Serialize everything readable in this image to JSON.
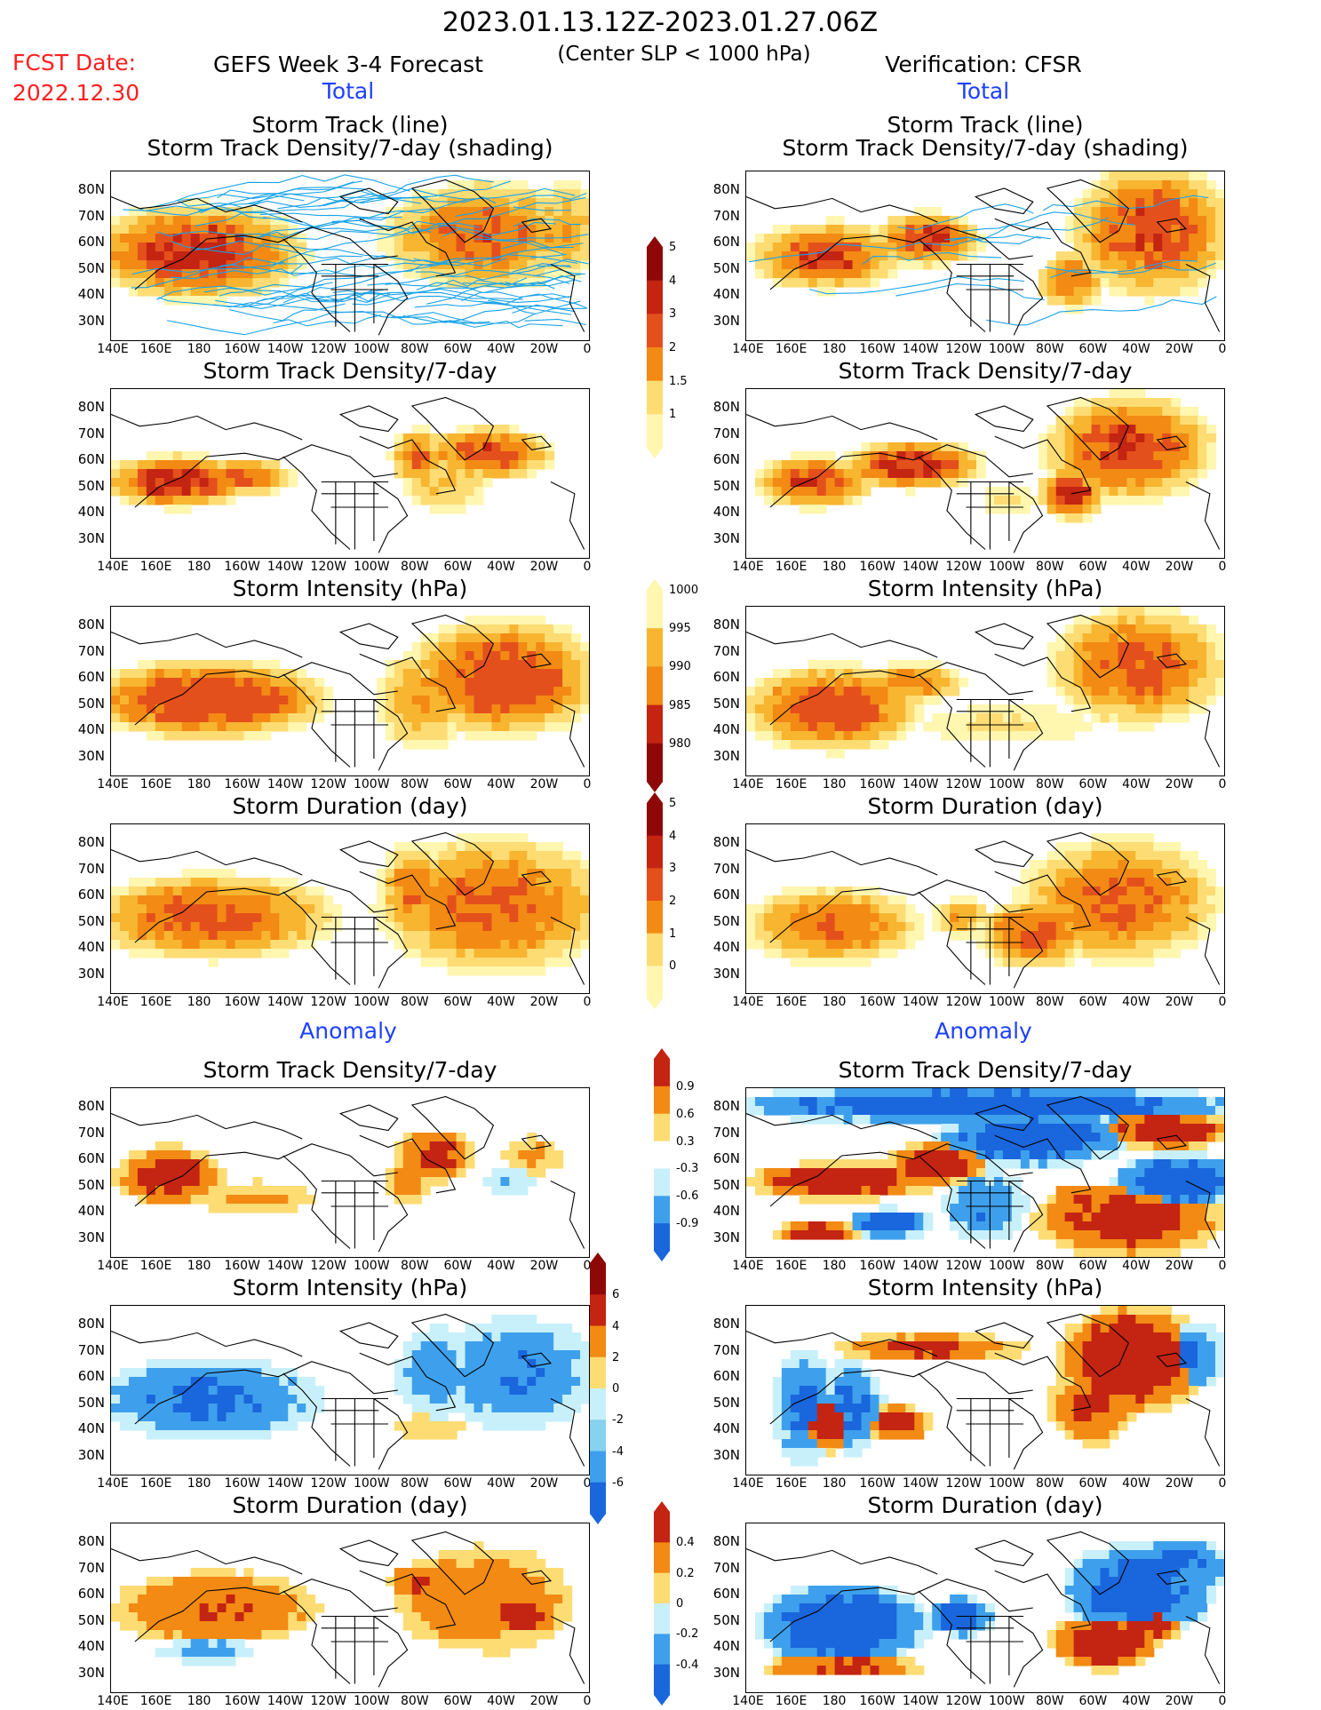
{
  "header": {
    "date_range": "2023.01.13.12Z-2023.01.27.06Z",
    "fcst_label": "FCST Date:",
    "fcst_date": "2022.12.30",
    "left_title": "GEFS Week 3-4 Forecast",
    "center_note": "(Center SLP < 1000 hPa)",
    "right_title": "Verification: CFSR"
  },
  "sections": {
    "total": "Total",
    "anomaly": "Anomaly"
  },
  "panel_titles": {
    "track_line": "Storm Track (line)",
    "track_shading": "Storm Track Density/7-day (shading)",
    "density": "Storm Track Density/7-day",
    "intensity": "Storm Intensity (hPa)",
    "duration": "Storm Duration (day)"
  },
  "axes": {
    "lat_labels": [
      "80N",
      "70N",
      "60N",
      "50N",
      "40N",
      "30N"
    ],
    "lon_labels": [
      "140E",
      "160E",
      "180",
      "160W",
      "140W",
      "120W",
      "100W",
      "80W",
      "60W",
      "40W",
      "20W",
      "0"
    ]
  },
  "colorbars": {
    "density_total": [
      "5",
      "4",
      "3",
      "2",
      "1.5",
      "1"
    ],
    "intensity_total": [
      "1000",
      "995",
      "990",
      "985",
      "980"
    ],
    "duration_total": [
      "5",
      "4",
      "3",
      "2",
      "1",
      "0"
    ],
    "density_anom": [
      "0.9",
      "0.6",
      "0.3",
      "-0.3",
      "-0.6",
      "-0.9"
    ],
    "intensity_anom": [
      "6",
      "4",
      "2",
      "0",
      "-2",
      "-4",
      "-6"
    ],
    "duration_anom": [
      "0.4",
      "0.2",
      "0",
      "-0.2",
      "-0.4"
    ]
  },
  "colors": {
    "warm": [
      "#fff6b0",
      "#fddc74",
      "#f8b530",
      "#f28a14",
      "#e4501c",
      "#c42412",
      "#8e0808"
    ],
    "cool": [
      "#c8f0fa",
      "#86d2f0",
      "#3ea0ec",
      "#1a66dc"
    ],
    "track_line": "#1aa3e8",
    "fcst_red": "#ff2020",
    "section_blue": "#1e40ff"
  }
}
